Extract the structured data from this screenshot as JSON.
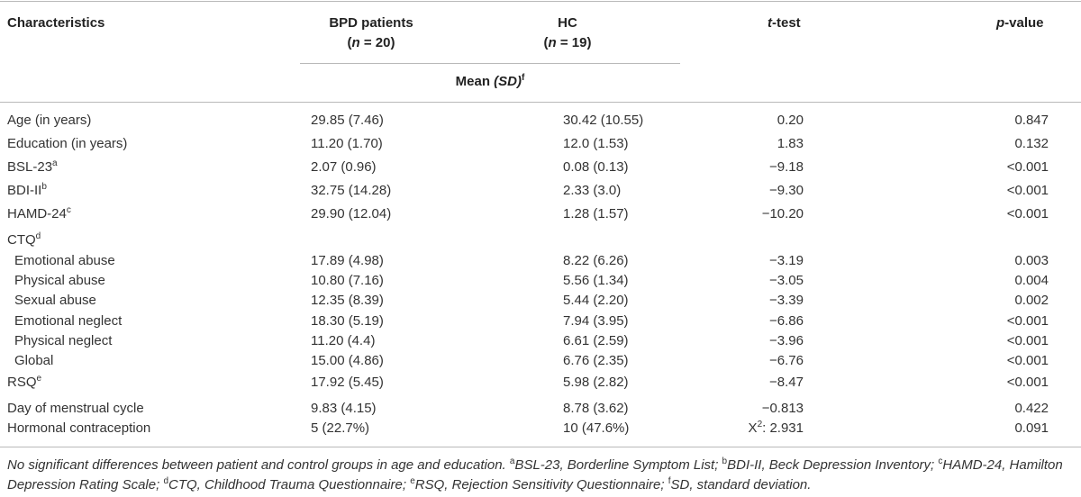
{
  "table": {
    "headers": {
      "characteristics": "Characteristics",
      "bpd_title": "BPD patients",
      "bpd_n_var": "n",
      "bpd_n_val": " = 20)",
      "hc_title": "HC",
      "hc_n_var": "n",
      "hc_n_val": " = 19)",
      "t_var": "t",
      "t_rest": "-test",
      "p_var": "p",
      "p_rest": "-value",
      "mean_label": "Mean ",
      "sd_label": "(SD)",
      "sd_sup": "f"
    },
    "rows": [
      {
        "label": "Age (in years)",
        "sup": "",
        "bpd": "29.85 (7.46)",
        "hc": "30.42 (10.55)",
        "t": "0.20",
        "p": "0.847"
      },
      {
        "label": "Education (in years)",
        "sup": "",
        "bpd": "11.20 (1.70)",
        "hc": "12.0 (1.53)",
        "t": "1.83",
        "p": "0.132"
      },
      {
        "label": "BSL-23",
        "sup": "a",
        "bpd": "2.07 (0.96)",
        "hc": "0.08 (0.13)",
        "t": "−9.18",
        "p": "<0.001"
      },
      {
        "label": "BDI-II",
        "sup": "b",
        "bpd": "32.75 (14.28)",
        "hc": "2.33 (3.0)",
        "t": "−9.30",
        "p": "<0.001"
      },
      {
        "label": "HAMD-24",
        "sup": "c",
        "bpd": "29.90 (12.04)",
        "hc": "1.28 (1.57)",
        "t": "−10.20",
        "p": "<0.001"
      },
      {
        "label": "CTQ",
        "sup": "d",
        "bpd": "",
        "hc": "",
        "t": "",
        "p": ""
      },
      {
        "label": "Emotional abuse",
        "sup": "",
        "bpd": "17.89 (4.98)",
        "hc": "8.22 (6.26)",
        "t": "−3.19",
        "p": "0.003"
      },
      {
        "label": "Physical abuse",
        "sup": "",
        "bpd": "10.80 (7.16)",
        "hc": "5.56 (1.34)",
        "t": "−3.05",
        "p": "0.004"
      },
      {
        "label": "Sexual abuse",
        "sup": "",
        "bpd": "12.35 (8.39)",
        "hc": "5.44 (2.20)",
        "t": "−3.39",
        "p": "0.002"
      },
      {
        "label": "Emotional neglect",
        "sup": "",
        "bpd": "18.30 (5.19)",
        "hc": "7.94 (3.95)",
        "t": "−6.86",
        "p": "<0.001"
      },
      {
        "label": "Physical neglect",
        "sup": "",
        "bpd": "11.20 (4.4)",
        "hc": "6.61 (2.59)",
        "t": "−3.96",
        "p": "<0.001"
      },
      {
        "label": "Global",
        "sup": "",
        "bpd": "15.00 (4.86)",
        "hc": "6.76 (2.35)",
        "t": "−6.76",
        "p": "<0.001"
      },
      {
        "label": "RSQ",
        "sup": "e",
        "bpd": "17.92 (5.45)",
        "hc": "5.98 (2.82)",
        "t": "−8.47",
        "p": "<0.001"
      },
      {
        "label": "Day of menstrual cycle",
        "sup": "",
        "bpd": "9.83 (4.15)",
        "hc": "8.78 (3.62)",
        "t": "−0.813",
        "p": "0.422"
      },
      {
        "label": "Hormonal contraception",
        "sup": "",
        "bpd": "5 (22.7%)",
        "hc": "10 (47.6%)",
        "t": "X",
        "t_sup": "2",
        "t_after": ": 2.931",
        "p": "0.091"
      }
    ]
  },
  "footnote": {
    "intro": "No significant differences between patient and control groups in age and education. ",
    "notes": [
      {
        "sup": "a",
        "text": "BSL-23, Borderline Symptom List; "
      },
      {
        "sup": "b",
        "text": "BDI-II, Beck Depression Inventory; "
      },
      {
        "sup": "c",
        "text": "HAMD-24, Hamilton Depression Rating Scale; "
      },
      {
        "sup": "d",
        "text": "CTQ, Childhood Trauma Questionnaire; "
      },
      {
        "sup": "e",
        "text": "RSQ, Rejection Sensitivity Questionnaire; "
      },
      {
        "sup": "f",
        "text": "SD, standard deviation."
      }
    ]
  }
}
